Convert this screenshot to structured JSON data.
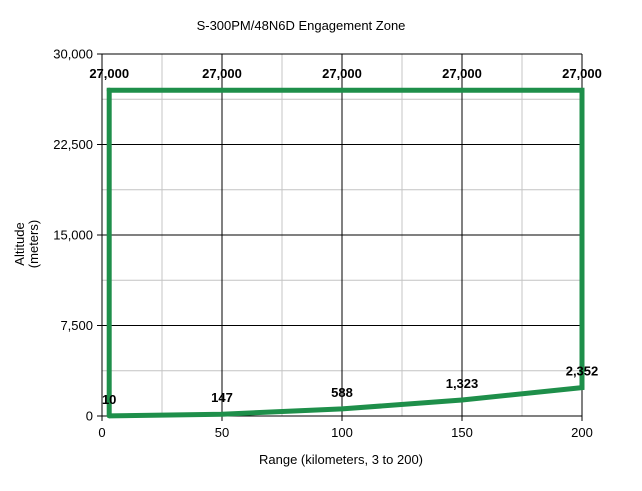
{
  "chart_data": {
    "type": "line",
    "title": "S-300PM/48N6D Engagement Zone",
    "xlabel": "Range (kilometers, 3 to 200)",
    "ylabel_lines": [
      "Altitude",
      "(meters)"
    ],
    "xlim": [
      0,
      200
    ],
    "ylim": [
      0,
      30000
    ],
    "x_ticks": [
      0,
      50,
      100,
      150,
      200
    ],
    "x_tick_labels": [
      "0",
      "50",
      "100",
      "150",
      "200"
    ],
    "y_ticks": [
      0,
      7500,
      15000,
      22500,
      30000
    ],
    "y_tick_labels": [
      "0",
      "7,500",
      "15,000",
      "22,500",
      "30,000"
    ],
    "x_minor_step": 25,
    "y_minor_step": 3750,
    "grid": true,
    "series": [
      {
        "color": "#1e8f4a",
        "points": [
          {
            "x": 3,
            "y": 10
          },
          {
            "x": 50,
            "y": 147
          },
          {
            "x": 100,
            "y": 588
          },
          {
            "x": 150,
            "y": 1323
          },
          {
            "x": 200,
            "y": 2352
          },
          {
            "x": 200,
            "y": 27000
          },
          {
            "x": 150,
            "y": 27000
          },
          {
            "x": 100,
            "y": 27000
          },
          {
            "x": 50,
            "y": 27000
          },
          {
            "x": 3,
            "y": 27000
          },
          {
            "x": 3,
            "y": 10
          }
        ]
      }
    ],
    "data_labels": [
      {
        "x": 3,
        "y": 10,
        "text": "10",
        "pos": "above"
      },
      {
        "x": 50,
        "y": 147,
        "text": "147",
        "pos": "above"
      },
      {
        "x": 100,
        "y": 588,
        "text": "588",
        "pos": "above"
      },
      {
        "x": 150,
        "y": 1323,
        "text": "1,323",
        "pos": "above"
      },
      {
        "x": 200,
        "y": 2352,
        "text": "2,352",
        "pos": "above"
      },
      {
        "x": 3,
        "y": 27000,
        "text": "27,000",
        "pos": "above"
      },
      {
        "x": 50,
        "y": 27000,
        "text": "27,000",
        "pos": "above"
      },
      {
        "x": 100,
        "y": 27000,
        "text": "27,000",
        "pos": "above"
      },
      {
        "x": 150,
        "y": 27000,
        "text": "27,000",
        "pos": "above"
      },
      {
        "x": 200,
        "y": 27000,
        "text": "27,000",
        "pos": "above"
      }
    ]
  }
}
